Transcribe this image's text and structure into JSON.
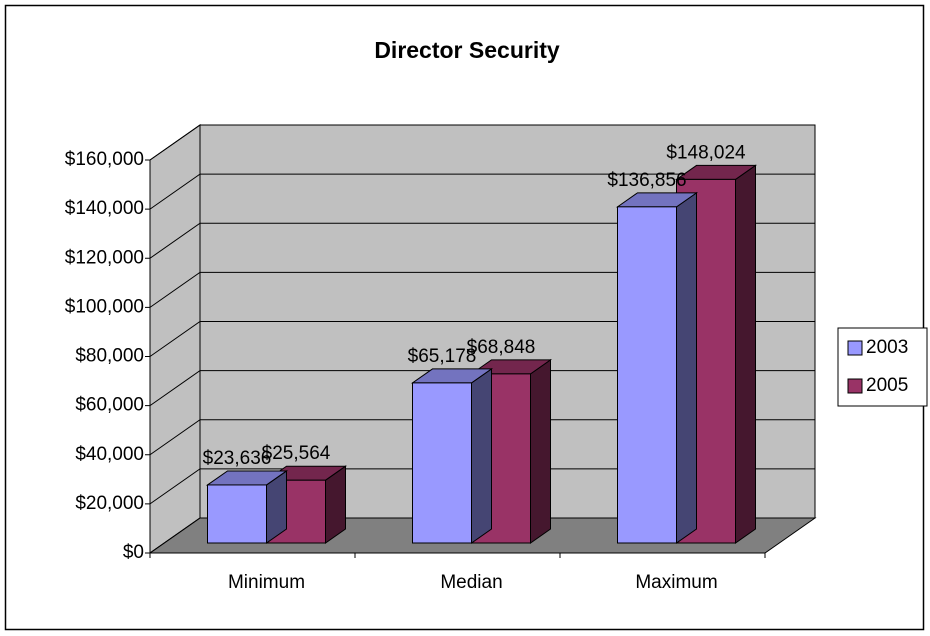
{
  "chart_data": {
    "type": "bar3d",
    "title": "Director Security",
    "categories": [
      "Minimum",
      "Median",
      "Maximum"
    ],
    "series": [
      {
        "name": "2003",
        "color": "#9999ff",
        "values": [
          23636,
          65178,
          136856
        ],
        "value_labels": [
          "$23,636",
          "$65,178",
          "$136,856"
        ]
      },
      {
        "name": "2005",
        "color": "#993366",
        "values": [
          25564,
          68848,
          148024
        ],
        "value_labels": [
          "$25,564",
          "$68,848",
          "$148,024"
        ]
      }
    ],
    "ylim": [
      0,
      160000
    ],
    "yticks": [
      {
        "value": 0,
        "label": "$0"
      },
      {
        "value": 20000,
        "label": "$20,000"
      },
      {
        "value": 40000,
        "label": "$40,000"
      },
      {
        "value": 60000,
        "label": "$60,000"
      },
      {
        "value": 80000,
        "label": "$80,000"
      },
      {
        "value": 100000,
        "label": "$100,000"
      },
      {
        "value": 120000,
        "label": "$120,000"
      },
      {
        "value": 140000,
        "label": "$140,000"
      },
      {
        "value": 160000,
        "label": "$160,000"
      }
    ],
    "grid": true,
    "legend": "right"
  }
}
